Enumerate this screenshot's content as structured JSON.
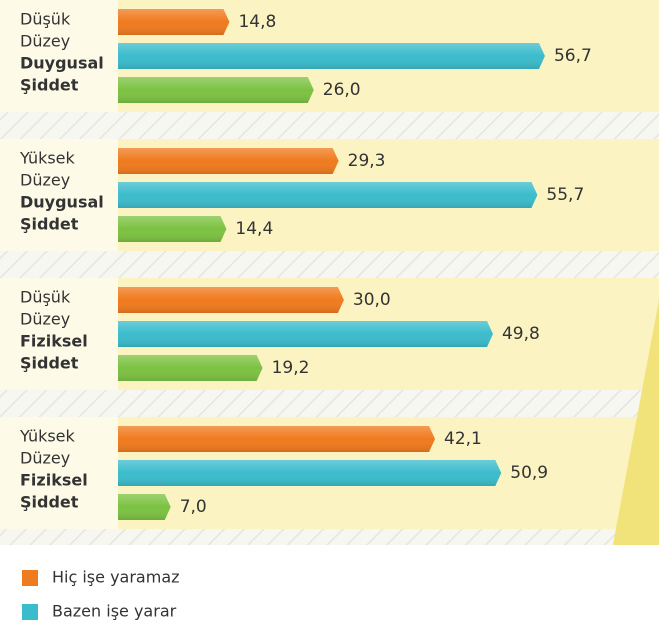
{
  "chart_data": {
    "type": "bar",
    "orientation": "horizontal",
    "categories": [
      [
        "Düşük",
        "Düzey",
        "Duygusal",
        "Şiddet"
      ],
      [
        "Yüksek",
        "Düzey",
        "Duygusal",
        "Şiddet"
      ],
      [
        "Düşük",
        "Düzey",
        "Fiziksel",
        "Şiddet"
      ],
      [
        "Yüksek",
        "Düzey",
        "Fiziksel",
        "Şiddet"
      ]
    ],
    "series": [
      {
        "name": "Hiç işe yaramaz",
        "color": "#f07a1e",
        "values": [
          14.8,
          29.3,
          30.0,
          42.1
        ],
        "value_labels": [
          "14,8",
          "29,3",
          "30,0",
          "42,1"
        ]
      },
      {
        "name": "Bazen işe yarar",
        "color": "#3bbccc",
        "values": [
          56.7,
          55.7,
          49.8,
          50.9
        ],
        "value_labels": [
          "56,7",
          "55,7",
          "49,8",
          "50,9"
        ]
      },
      {
        "color": "#7cc242",
        "values": [
          26.0,
          14.4,
          19.2,
          7.0
        ],
        "value_labels": [
          "26,0",
          "14,4",
          "19,2",
          "7,0"
        ]
      }
    ]
  }
}
